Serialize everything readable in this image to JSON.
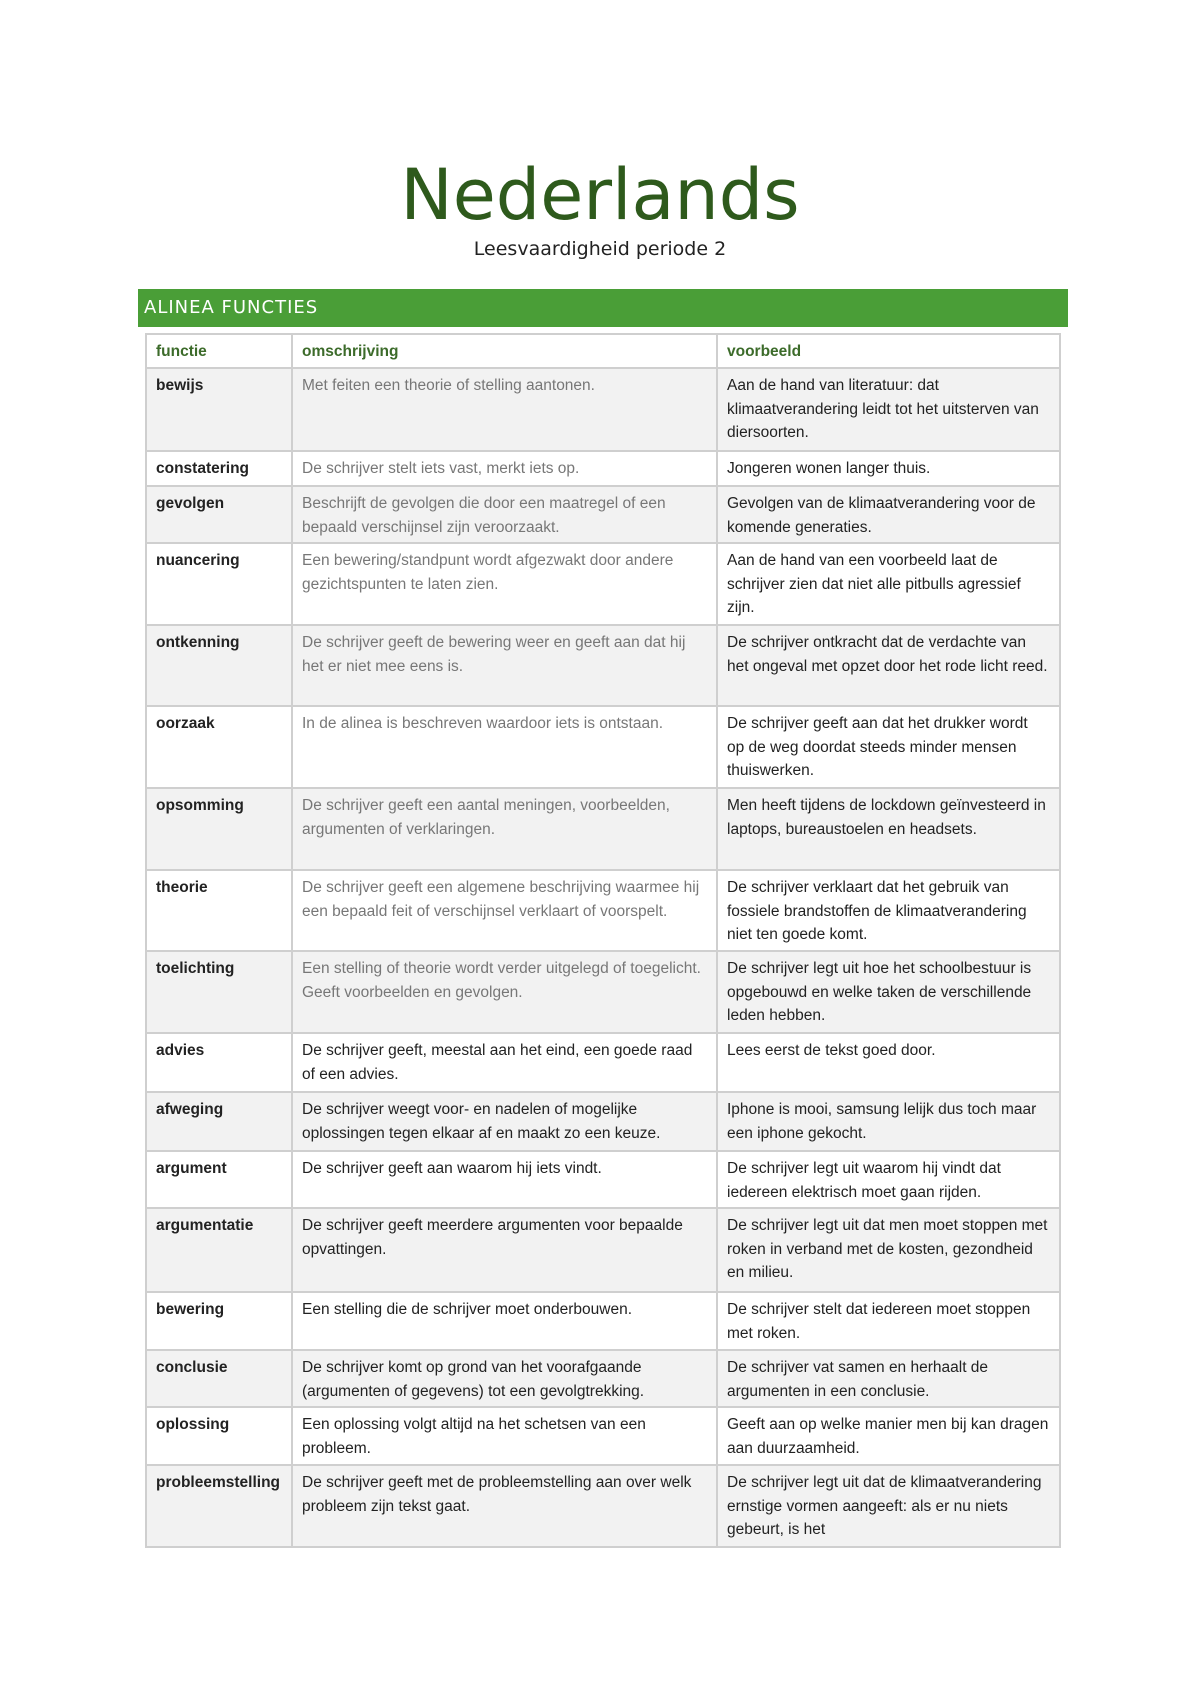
{
  "document": {
    "title": "Nederlands",
    "subtitle": "Leesvaardigheid periode 2",
    "section_title": "ALINEA FUNCTIES"
  },
  "table": {
    "headers": [
      "functie",
      "omschrijving",
      "voorbeeld"
    ],
    "rows": [
      {
        "functie": "bewijs",
        "omschrijving": "Met feiten een theorie of stelling aantonen.",
        "voorbeeld": "Aan de hand van literatuur: dat klimaatverandering leidt tot het uitsterven van diersoorten."
      },
      {
        "functie": "constatering",
        "omschrijving": "De schrijver stelt iets vast, merkt iets op.",
        "voorbeeld": "Jongeren wonen langer thuis."
      },
      {
        "functie": "gevolgen",
        "omschrijving": "Beschrijft de gevolgen die door een maatregel of een bepaald verschijnsel zijn veroorzaakt.",
        "voorbeeld": "Gevolgen van de klimaatverandering voor de komende generaties."
      },
      {
        "functie": "nuancering",
        "omschrijving": "Een bewering/standpunt wordt afgezwakt door andere gezichtspunten te laten zien.",
        "voorbeeld": "Aan de hand van een voorbeeld laat de schrijver zien dat niet alle pitbulls agressief zijn."
      },
      {
        "functie": "ontkenning",
        "omschrijving": "De schrijver geeft de bewering weer en geeft aan dat hij het er niet mee eens is.",
        "voorbeeld": "De schrijver ontkracht dat de verdachte van het ongeval met opzet door het rode licht reed."
      },
      {
        "functie": "oorzaak",
        "omschrijving": "In de alinea is beschreven waardoor iets is ontstaan.",
        "voorbeeld": "De schrijver geeft aan dat het drukker wordt op de weg doordat steeds minder mensen thuiswerken."
      },
      {
        "functie": "opsomming",
        "omschrijving": "De schrijver geeft een aantal meningen, voorbeelden, argumenten of verklaringen.",
        "voorbeeld": "Men heeft tijdens de lockdown geïnvesteerd in laptops, bureaustoelen en headsets."
      },
      {
        "functie": "theorie",
        "omschrijving": "De schrijver geeft een algemene beschrijving waarmee hij een bepaald feit of verschijnsel verklaart of voorspelt.",
        "voorbeeld": "De schrijver verklaart dat het gebruik van fossiele brandstoffen de klimaatverandering niet ten goede komt."
      },
      {
        "functie": "toelichting",
        "omschrijving": "Een stelling of theorie wordt verder uitgelegd of toegelicht. Geeft voorbeelden en gevolgen.",
        "voorbeeld": "De schrijver legt uit hoe het schoolbestuur is opgebouwd en welke taken de verschillende leden hebben."
      },
      {
        "functie": "advies",
        "omschrijving": "De schrijver geeft, meestal aan het eind, een goede raad of een advies.",
        "voorbeeld": "Lees eerst de tekst goed door."
      },
      {
        "functie": "afweging",
        "omschrijving": "De schrijver weegt voor- en nadelen of mogelijke oplossingen tegen elkaar af en maakt zo een keuze.",
        "voorbeeld": "Iphone is mooi, samsung lelijk dus toch maar een iphone gekocht."
      },
      {
        "functie": "argument",
        "omschrijving": "De schrijver geeft aan waarom hij iets vindt.",
        "voorbeeld": "De schrijver legt uit waarom hij vindt dat iedereen elektrisch moet gaan rijden."
      },
      {
        "functie": "argumentatie",
        "omschrijving": "De schrijver geeft meerdere argumenten voor bepaalde opvattingen.",
        "voorbeeld": "De schrijver legt uit dat men moet stoppen met roken in verband met de kosten, gezondheid en milieu."
      },
      {
        "functie": "bewering",
        "omschrijving": "Een stelling die de schrijver moet onderbouwen.",
        "voorbeeld": "De schrijver stelt dat iedereen moet stoppen met roken."
      },
      {
        "functie": "conclusie",
        "omschrijving": "De schrijver komt op grond van het voorafgaande (argumenten of gegevens) tot een gevolgtrekking.",
        "voorbeeld": "De schrijver vat samen en herhaalt de argumenten in een conclusie."
      },
      {
        "functie": "oplossing",
        "omschrijving": "Een oplossing volgt altijd na het schetsen van een probleem.",
        "voorbeeld": "Geeft aan op welke manier men bij kan dragen aan duurzaamheid."
      },
      {
        "functie": "probleemstelling",
        "omschrijving": "De schrijver geeft met de probleemstelling aan over welk probleem zijn tekst gaat.",
        "voorbeeld": "De schrijver legt uit dat de klimaatverandering ernstige vormen aangeeft: als er nu niets gebeurt, is het"
      }
    ]
  },
  "colors": {
    "title": "#2e5a1c",
    "banner": "#4a9e37",
    "header_text": "#3c6b2a",
    "alt_row": "#f2f2f2"
  }
}
